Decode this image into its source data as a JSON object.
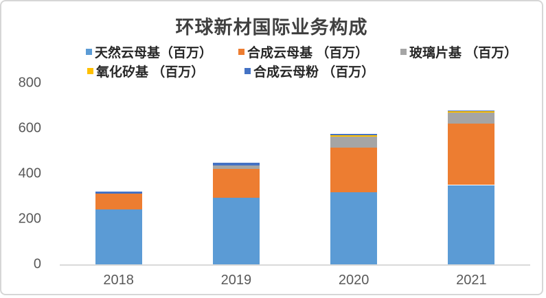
{
  "chart_data": {
    "type": "bar",
    "stacked": true,
    "title": "环球新材国际业务构成",
    "categories": [
      "2018",
      "2019",
      "2020",
      "2021"
    ],
    "series": [
      {
        "key": "natural-mica",
        "name": "天然云母基（百万）",
        "color": "#5B9BD5",
        "values": [
          242,
          293,
          317,
          350
        ]
      },
      {
        "key": "synthetic-mica",
        "name": "合成云母基 （百万）",
        "color": "#ED7D31",
        "values": [
          70,
          128,
          199,
          272
        ]
      },
      {
        "key": "glass-flake",
        "name": "玻璃片基 （百万）",
        "color": "#A5A5A5",
        "values": [
          0,
          15,
          48,
          47
        ]
      },
      {
        "key": "silicon-oxide",
        "name": "氧化矽基 （百万）",
        "color": "#FFC000",
        "values": [
          0,
          0,
          6,
          6
        ]
      },
      {
        "key": "synthetic-mica-powder",
        "name": "合成云母粉 （百万）",
        "color": "#4472C4",
        "values": [
          9,
          12,
          5,
          4
        ]
      }
    ],
    "totals": [
      321,
      448,
      575,
      679
    ],
    "xlabel": "",
    "ylabel": "",
    "ylim": [
      0,
      800
    ],
    "yticks": [
      0,
      200,
      400,
      600,
      800
    ],
    "grid": false,
    "legend_position": "top",
    "colors": {
      "axis_line": "#d9d9d9",
      "tick_labels": "#595959",
      "title": "#404040",
      "legend_text": "#262626",
      "card_border": "#d6d6d6"
    }
  }
}
